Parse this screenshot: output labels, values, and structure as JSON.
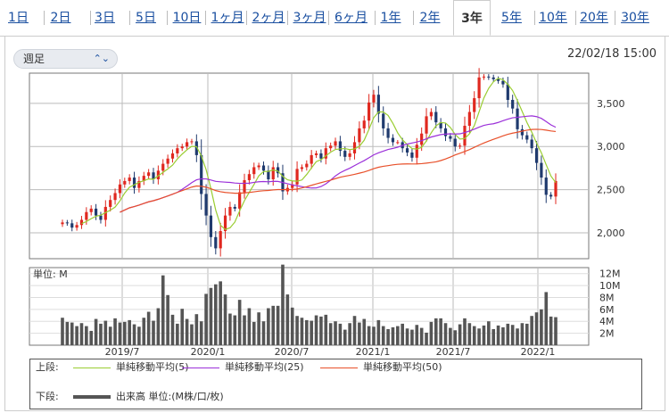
{
  "tabs": [
    "1日",
    "2日",
    "3日",
    "5日",
    "10日",
    "1ヶ月",
    "2ヶ月",
    "3ヶ月",
    "6ヶ月",
    "1年",
    "2年",
    "3年",
    "5年",
    "10年",
    "20年",
    "30年"
  ],
  "selected_tab": "3年",
  "period_select": {
    "value": "週足"
  },
  "timestamp": "22/02/18 15:00",
  "colors": {
    "up": "#e0281f",
    "down": "#1f3a6e",
    "ma5": "#9acd32",
    "ma25": "#9b30d9",
    "ma50": "#e8502a",
    "volume": "#555555"
  },
  "legend": {
    "upper_label": "上段:",
    "lower_label": "下段:",
    "ma5": "単純移動平均(5)",
    "ma25": "単純移動平均(25)",
    "ma50": "単純移動平均(50)",
    "volume": "出来高 単位:(M株/口/枚)"
  },
  "chart_data": [
    {
      "type": "candlestick",
      "x_tick_labels": [
        "2019/7",
        "2020/1",
        "2020/7",
        "2021/1",
        "2021/7",
        "2022/1"
      ],
      "y_tick_labels": [
        "2,000",
        "2,500",
        "3,000",
        "3,500"
      ],
      "ylim": [
        1700,
        3850
      ],
      "grid": true,
      "close_weekly": [
        2120,
        2110,
        2060,
        2090,
        2150,
        2240,
        2280,
        2200,
        2150,
        2300,
        2380,
        2460,
        2560,
        2600,
        2640,
        2520,
        2600,
        2660,
        2700,
        2620,
        2720,
        2800,
        2860,
        2920,
        2980,
        3000,
        3050,
        3060,
        2900,
        2450,
        2200,
        1950,
        1820,
        2020,
        2200,
        2300,
        2280,
        2470,
        2610,
        2680,
        2760,
        2780,
        2720,
        2620,
        2760,
        2690,
        2480,
        2520,
        2560,
        2740,
        2760,
        2800,
        2900,
        2920,
        2860,
        2980,
        3010,
        3060,
        2950,
        2880,
        2920,
        3050,
        3210,
        3300,
        3510,
        3600,
        3380,
        3210,
        3100,
        3050,
        3050,
        2980,
        2930,
        2870,
        3020,
        3150,
        3350,
        3400,
        3280,
        3210,
        3120,
        3090,
        3000,
        3010,
        3240,
        3400,
        3560,
        3800,
        3810,
        3800,
        3780,
        3760,
        3720,
        3540,
        3440,
        3200,
        3130,
        3080,
        2980,
        2810,
        2640,
        2440,
        2420,
        2600
      ]
    },
    {
      "type": "bar",
      "title": "単位: M",
      "y_tick_labels": [
        "2M",
        "4M",
        "6M",
        "8M",
        "10M",
        "12M"
      ],
      "ylim": [
        0,
        13
      ],
      "values": [
        4.6,
        3.9,
        3.8,
        3.2,
        3.7,
        3.2,
        2.4,
        4.4,
        3.6,
        4.1,
        3.1,
        4.5,
        3.8,
        3.9,
        4.2,
        3.5,
        3.1,
        4.6,
        5.6,
        4.1,
        6.2,
        11.7,
        8.4,
        5.1,
        3.6,
        6.1,
        4.4,
        3.5,
        5.2,
        4.0,
        8.6,
        9.6,
        10.2,
        10.7,
        8.5,
        5.3,
        5.0,
        7.6,
        5.0,
        6.2,
        3.9,
        5.5,
        4.0,
        6.2,
        6.6,
        6.6,
        13.5,
        8.5,
        6.3,
        4.9,
        4.6,
        4.2,
        4.1,
        5.0,
        4.8,
        5.1,
        3.7,
        4.0,
        3.6,
        2.6,
        3.7,
        4.9,
        3.8,
        4.4,
        3.2,
        3.1,
        4.2,
        3.2,
        2.7,
        3.0,
        3.2,
        3.6,
        2.8,
        2.6,
        3.4,
        2.9,
        2.1,
        3.9,
        4.5,
        4.5,
        3.7,
        2.9,
        2.5,
        3.5,
        4.5,
        3.7,
        3.2,
        2.8,
        3.3,
        4.0,
        2.7,
        3.3,
        3.0,
        3.6,
        3.4,
        2.8,
        3.7,
        3.6,
        4.9,
        5.5,
        6.0,
        8.9,
        4.8,
        4.7
      ]
    }
  ]
}
